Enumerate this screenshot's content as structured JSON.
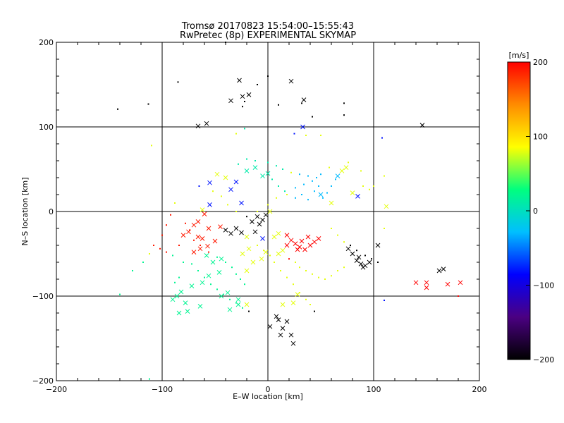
{
  "chart_data": {
    "type": "scatter",
    "title": "Tromsø 20170823 15:54:00–15:55:43",
    "subtitle": "RwPretec (8p) EXPERIMENTAL SKYMAP",
    "xlabel": "E–W location [km]",
    "ylabel": "N–S location [km]",
    "xlim": [
      -200,
      200
    ],
    "ylim": [
      -200,
      200
    ],
    "xticks": [
      "−200",
      "−100",
      "0",
      "100",
      "200"
    ],
    "yticks": [
      "200",
      "100",
      "0",
      "−100",
      "−200"
    ],
    "grid": true,
    "grid_lines_x": [
      -100,
      0,
      100
    ],
    "grid_lines_y": [
      -100,
      0,
      100
    ],
    "colorbar": {
      "label": "[m/s]",
      "range": [
        -200,
        200
      ],
      "ticks": [
        "200",
        "100",
        "0",
        "−100",
        "−200"
      ],
      "colors": [
        "#000000",
        "#4b0082",
        "#0000ff",
        "#00bfff",
        "#00ff7f",
        "#ffff00",
        "#ff8c00",
        "#ff0000"
      ]
    },
    "marker_types": [
      "x",
      "dot"
    ],
    "series": [
      {
        "marker": "x",
        "points": [
          [
            -27,
            155
          ],
          [
            -35,
            131
          ],
          [
            -66,
            101
          ],
          [
            -58,
            104
          ],
          [
            22,
            154
          ],
          [
            34,
            132
          ],
          [
            33,
            100
          ],
          [
            -18,
            138
          ],
          [
            -24,
            136
          ],
          [
            -55,
            8
          ],
          [
            -62,
            2
          ],
          [
            -60,
            -3
          ],
          [
            -66,
            -12
          ],
          [
            -70,
            -16
          ],
          [
            -56,
            -20
          ],
          [
            -66,
            -30
          ],
          [
            -62,
            -32
          ],
          [
            -75,
            -24
          ],
          [
            -80,
            -28
          ],
          [
            -50,
            -35
          ],
          [
            -57,
            -41
          ],
          [
            -64,
            -44
          ],
          [
            -70,
            -48
          ],
          [
            -58,
            -52
          ],
          [
            -44,
            -56
          ],
          [
            -52,
            -60
          ],
          [
            -46,
            -72
          ],
          [
            -56,
            -76
          ],
          [
            -62,
            -84
          ],
          [
            -72,
            -88
          ],
          [
            -82,
            -95
          ],
          [
            -86,
            -100
          ],
          [
            -90,
            -104
          ],
          [
            -78,
            -108
          ],
          [
            -64,
            -112
          ],
          [
            -76,
            -118
          ],
          [
            -84,
            -120
          ],
          [
            -44,
            -100
          ],
          [
            -38,
            -96
          ],
          [
            -28,
            -104
          ],
          [
            -28,
            -110
          ],
          [
            -36,
            -116
          ],
          [
            -20,
            -110
          ],
          [
            -45,
            -18
          ],
          [
            -40,
            -22
          ],
          [
            -35,
            -26
          ],
          [
            -30,
            -20
          ],
          [
            -25,
            -25
          ],
          [
            -20,
            -30
          ],
          [
            -15,
            -12
          ],
          [
            -10,
            -6
          ],
          [
            -5,
            -10
          ],
          [
            -2,
            -4
          ],
          [
            2,
            0
          ],
          [
            -8,
            -15
          ],
          [
            -30,
            35
          ],
          [
            -20,
            48
          ],
          [
            -12,
            52
          ],
          [
            -5,
            42
          ],
          [
            0,
            45
          ],
          [
            -25,
            10
          ],
          [
            -35,
            26
          ],
          [
            -40,
            40
          ],
          [
            -48,
            44
          ],
          [
            -55,
            34
          ],
          [
            18,
            -28
          ],
          [
            22,
            -34
          ],
          [
            26,
            -38
          ],
          [
            30,
            -42
          ],
          [
            35,
            -45
          ],
          [
            40,
            -40
          ],
          [
            44,
            -36
          ],
          [
            48,
            -32
          ],
          [
            38,
            -30
          ],
          [
            32,
            -35
          ],
          [
            28,
            -45
          ],
          [
            76,
            -44
          ],
          [
            80,
            -50
          ],
          [
            84,
            -58
          ],
          [
            88,
            -62
          ],
          [
            92,
            -64
          ],
          [
            96,
            -60
          ],
          [
            86,
            -54
          ],
          [
            90,
            -66
          ],
          [
            104,
            -40
          ],
          [
            112,
            6
          ],
          [
            70,
            48
          ],
          [
            74,
            52
          ],
          [
            66,
            42
          ],
          [
            85,
            18
          ],
          [
            80,
            22
          ],
          [
            60,
            10
          ],
          [
            50,
            20
          ],
          [
            2,
            -136
          ],
          [
            10,
            -128
          ],
          [
            14,
            -138
          ],
          [
            12,
            -146
          ],
          [
            8,
            -124
          ],
          [
            22,
            -146
          ],
          [
            24,
            -156
          ],
          [
            18,
            -130
          ],
          [
            14,
            -110
          ],
          [
            24,
            -108
          ],
          [
            28,
            -98
          ],
          [
            -20,
            -70
          ],
          [
            -14,
            -60
          ],
          [
            -6,
            -56
          ],
          [
            -2,
            -48
          ],
          [
            10,
            -26
          ],
          [
            -24,
            -50
          ],
          [
            -18,
            -44
          ],
          [
            140,
            -84
          ],
          [
            150,
            -84
          ],
          [
            150,
            -90
          ],
          [
            162,
            -70
          ],
          [
            166,
            -68
          ],
          [
            170,
            -86
          ],
          [
            182,
            -84
          ],
          [
            146,
            102
          ],
          [
            10,
            -50
          ],
          [
            14,
            -46
          ],
          [
            18,
            -40
          ],
          [
            6,
            -30
          ],
          [
            -5,
            -32
          ],
          [
            -12,
            -24
          ]
        ]
      },
      {
        "marker": "dot",
        "points": [
          [
            -142,
            121
          ],
          [
            -113,
            127
          ],
          [
            -110,
            78
          ],
          [
            -85,
            153
          ],
          [
            -24,
            124
          ],
          [
            -22,
            130
          ],
          [
            10,
            126
          ],
          [
            32,
            128
          ],
          [
            42,
            112
          ],
          [
            72,
            128
          ],
          [
            72,
            114
          ],
          [
            108,
            87
          ],
          [
            -40,
            200
          ],
          [
            -10,
            150
          ],
          [
            0,
            160
          ],
          [
            -30,
            92
          ],
          [
            -22,
            98
          ],
          [
            25,
            92
          ],
          [
            36,
            90
          ],
          [
            50,
            90
          ],
          [
            -65,
            30
          ],
          [
            -52,
            24
          ],
          [
            -44,
            18
          ],
          [
            -38,
            8
          ],
          [
            -30,
            0
          ],
          [
            -20,
            -6
          ],
          [
            -10,
            0
          ],
          [
            0,
            8
          ],
          [
            8,
            16
          ],
          [
            16,
            24
          ],
          [
            26,
            28
          ],
          [
            34,
            32
          ],
          [
            42,
            36
          ],
          [
            50,
            44
          ],
          [
            58,
            52
          ],
          [
            4,
            38
          ],
          [
            10,
            30
          ],
          [
            18,
            20
          ],
          [
            26,
            16
          ],
          [
            32,
            20
          ],
          [
            38,
            14
          ],
          [
            44,
            24
          ],
          [
            48,
            30
          ],
          [
            52,
            16
          ],
          [
            56,
            22
          ],
          [
            60,
            30
          ],
          [
            64,
            38
          ],
          [
            -78,
            -14
          ],
          [
            -74,
            -22
          ],
          [
            -70,
            -34
          ],
          [
            -64,
            -40
          ],
          [
            -56,
            -48
          ],
          [
            -48,
            -54
          ],
          [
            -40,
            -60
          ],
          [
            -34,
            -66
          ],
          [
            -30,
            -74
          ],
          [
            -26,
            -80
          ],
          [
            -22,
            -86
          ],
          [
            -72,
            -62
          ],
          [
            -66,
            -70
          ],
          [
            -60,
            -78
          ],
          [
            -54,
            -86
          ],
          [
            -48,
            -92
          ],
          [
            -42,
            -98
          ],
          [
            -36,
            -104
          ],
          [
            -30,
            -108
          ],
          [
            -24,
            -114
          ],
          [
            -18,
            -118
          ],
          [
            -90,
            -52
          ],
          [
            -96,
            -48
          ],
          [
            -102,
            -44
          ],
          [
            -108,
            -40
          ],
          [
            -112,
            -50
          ],
          [
            -118,
            -60
          ],
          [
            -128,
            -70
          ],
          [
            -140,
            -98
          ],
          [
            -112,
            -198
          ],
          [
            110,
            -20
          ],
          [
            20,
            -56
          ],
          [
            26,
            -60
          ],
          [
            30,
            -66
          ],
          [
            36,
            -70
          ],
          [
            42,
            -74
          ],
          [
            48,
            -78
          ],
          [
            54,
            -80
          ],
          [
            60,
            -76
          ],
          [
            66,
            -70
          ],
          [
            72,
            -66
          ],
          [
            90,
            30
          ],
          [
            96,
            26
          ],
          [
            100,
            30
          ],
          [
            110,
            42
          ],
          [
            76,
            58
          ],
          [
            88,
            48
          ],
          [
            -28,
            56
          ],
          [
            -20,
            62
          ],
          [
            -12,
            60
          ],
          [
            0,
            58
          ],
          [
            8,
            54
          ],
          [
            14,
            50
          ],
          [
            22,
            46
          ],
          [
            30,
            44
          ],
          [
            38,
            42
          ],
          [
            46,
            40
          ],
          [
            -88,
            10
          ],
          [
            -92,
            -4
          ],
          [
            -96,
            -16
          ],
          [
            -100,
            -28
          ],
          [
            -84,
            -40
          ],
          [
            -80,
            -60
          ],
          [
            -84,
            -78
          ],
          [
            -88,
            -84
          ],
          [
            60,
            -20
          ],
          [
            66,
            -28
          ],
          [
            72,
            -36
          ],
          [
            78,
            -40
          ],
          [
            84,
            -46
          ],
          [
            92,
            -52
          ],
          [
            98,
            -56
          ],
          [
            104,
            -60
          ],
          [
            -10,
            -40
          ],
          [
            -4,
            -46
          ],
          [
            2,
            -52
          ],
          [
            6,
            -60
          ],
          [
            12,
            -70
          ],
          [
            18,
            -78
          ],
          [
            24,
            -86
          ],
          [
            30,
            -96
          ],
          [
            36,
            -104
          ],
          [
            40,
            -110
          ],
          [
            44,
            -118
          ],
          [
            180,
            -100
          ],
          [
            110,
            -105
          ]
        ]
      }
    ]
  }
}
